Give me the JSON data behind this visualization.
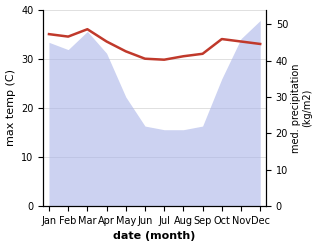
{
  "months": [
    "Jan",
    "Feb",
    "Mar",
    "Apr",
    "May",
    "Jun",
    "Jul",
    "Aug",
    "Sep",
    "Oct",
    "Nov",
    "Dec"
  ],
  "month_indices": [
    0,
    1,
    2,
    3,
    4,
    5,
    6,
    7,
    8,
    9,
    10,
    11
  ],
  "max_temp": [
    35.0,
    34.5,
    36.0,
    33.5,
    31.5,
    30.0,
    29.8,
    30.5,
    31.0,
    34.0,
    33.5,
    33.0
  ],
  "precipitation_kg": [
    45,
    43,
    48,
    42,
    30,
    22,
    21,
    21,
    22,
    35,
    46,
    51
  ],
  "temp_color": "#c0392b",
  "precip_color": "#aab4e8",
  "background_color": "#ffffff",
  "temp_ylim": [
    0,
    40
  ],
  "precip_ylim": [
    0,
    54
  ],
  "xlabel": "date (month)",
  "ylabel_left": "max temp (C)",
  "ylabel_right": "med. precipitation\n(kg/m2)",
  "temp_linewidth": 1.8,
  "precip_alpha": 0.6,
  "label_fontsize": 8,
  "tick_fontsize": 7
}
